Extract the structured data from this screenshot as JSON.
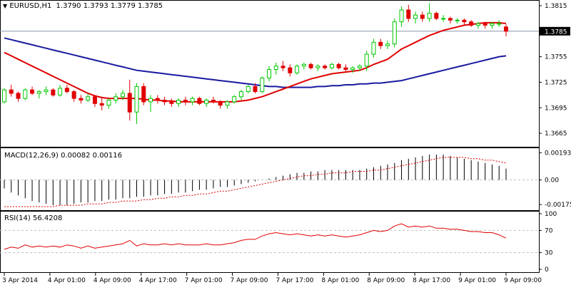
{
  "header": {
    "symbol_tf": "EURUSD,H1",
    "ohlc": "1.3790 1.3793 1.3779 1.3785"
  },
  "price_tag": "1.3785",
  "macd_header": "MACD(12,26,9) 0.00082 0.00116",
  "rsi_header": "RSI(14) 56.4208",
  "colors": {
    "bull": "#00c800",
    "bear": "#e00000",
    "ma_fast": "#e00000",
    "ma_slow": "#1a1aa0",
    "macd_signal": "#e00000",
    "rsi": "#e00000",
    "grid": "#c0c0c0",
    "current_price_line": "#8c96aa",
    "icon_color": "#000000"
  },
  "icons": {
    "menu": "triangle-down-icon"
  },
  "chart_data": [
    {
      "type": "candlestick",
      "name": "EURUSD,H1",
      "ylim": [
        1.365,
        1.382
      ],
      "yticks": [
        "1.3815",
        "1.3785",
        "1.3755",
        "1.3725",
        "1.3695",
        "1.3665"
      ],
      "xticks": [
        "3 Apr 2014",
        "4 Apr 01:00",
        "4 Apr 09:00",
        "4 Apr 17:00",
        "7 Apr 01:00",
        "7 Apr 09:00",
        "7 Apr 17:00",
        "8 Apr 01:00",
        "8 Apr 09:00",
        "8 Apr 17:00",
        "9 Apr 01:00",
        "9 Apr 09:00"
      ],
      "candles": [
        [
          1.3702,
          1.3718,
          1.37,
          1.3716
        ],
        [
          1.3716,
          1.3722,
          1.3708,
          1.3712
        ],
        [
          1.3712,
          1.3714,
          1.3702,
          1.3706
        ],
        [
          1.3706,
          1.3718,
          1.3704,
          1.3716
        ],
        [
          1.3716,
          1.372,
          1.371,
          1.3712
        ],
        [
          1.3712,
          1.3716,
          1.3706,
          1.3714
        ],
        [
          1.3714,
          1.372,
          1.371,
          1.3716
        ],
        [
          1.3716,
          1.3718,
          1.3708,
          1.371
        ],
        [
          1.371,
          1.3722,
          1.3708,
          1.3718
        ],
        [
          1.3718,
          1.3722,
          1.3712,
          1.3714
        ],
        [
          1.3714,
          1.3716,
          1.3702,
          1.3706
        ],
        [
          1.3706,
          1.371,
          1.37,
          1.3704
        ],
        [
          1.3704,
          1.3712,
          1.3702,
          1.3708
        ],
        [
          1.3708,
          1.371,
          1.3696,
          1.37
        ],
        [
          1.37,
          1.3708,
          1.3692,
          1.3698
        ],
        [
          1.3698,
          1.3706,
          1.3694,
          1.3704
        ],
        [
          1.3704,
          1.3712,
          1.37,
          1.3708
        ],
        [
          1.3708,
          1.3716,
          1.3704,
          1.3712
        ],
        [
          1.3712,
          1.3728,
          1.368,
          1.369
        ],
        [
          1.369,
          1.3724,
          1.3676,
          1.372
        ],
        [
          1.372,
          1.3724,
          1.3698,
          1.3702
        ],
        [
          1.3702,
          1.371,
          1.369,
          1.3706
        ],
        [
          1.3706,
          1.371,
          1.37,
          1.3704
        ],
        [
          1.3704,
          1.3708,
          1.3698,
          1.3702
        ],
        [
          1.3702,
          1.3706,
          1.3696,
          1.37
        ],
        [
          1.37,
          1.3706,
          1.3696,
          1.3704
        ],
        [
          1.3704,
          1.3708,
          1.3698,
          1.3702
        ],
        [
          1.3702,
          1.3708,
          1.3698,
          1.3706
        ],
        [
          1.3706,
          1.3708,
          1.3698,
          1.37
        ],
        [
          1.37,
          1.3706,
          1.3696,
          1.3704
        ],
        [
          1.3704,
          1.3708,
          1.37,
          1.3702
        ],
        [
          1.3702,
          1.3704,
          1.3694,
          1.3698
        ],
        [
          1.3698,
          1.3704,
          1.3694,
          1.3702
        ],
        [
          1.3702,
          1.371,
          1.37,
          1.3708
        ],
        [
          1.3708,
          1.3716,
          1.3704,
          1.3714
        ],
        [
          1.3714,
          1.3722,
          1.3712,
          1.372
        ],
        [
          1.372,
          1.3724,
          1.3712,
          1.3714
        ],
        [
          1.3714,
          1.3732,
          1.3712,
          1.373
        ],
        [
          1.373,
          1.3744,
          1.3726,
          1.374
        ],
        [
          1.374,
          1.3748,
          1.3734,
          1.3744
        ],
        [
          1.3744,
          1.375,
          1.3738,
          1.3742
        ],
        [
          1.3742,
          1.3746,
          1.3732,
          1.3736
        ],
        [
          1.3736,
          1.3746,
          1.3734,
          1.3744
        ],
        [
          1.3744,
          1.3748,
          1.374,
          1.3746
        ],
        [
          1.3746,
          1.3748,
          1.374,
          1.3742
        ],
        [
          1.3742,
          1.3746,
          1.3738,
          1.3744
        ],
        [
          1.3744,
          1.3746,
          1.374,
          1.3742
        ],
        [
          1.3742,
          1.3748,
          1.374,
          1.3746
        ],
        [
          1.3746,
          1.3748,
          1.374,
          1.3742
        ],
        [
          1.3742,
          1.3746,
          1.3738,
          1.374
        ],
        [
          1.374,
          1.3744,
          1.3736,
          1.3742
        ],
        [
          1.3742,
          1.3746,
          1.3738,
          1.3744
        ],
        [
          1.3744,
          1.3762,
          1.3738,
          1.3758
        ],
        [
          1.3758,
          1.3776,
          1.3754,
          1.3772
        ],
        [
          1.3772,
          1.3776,
          1.3764,
          1.3768
        ],
        [
          1.3768,
          1.3774,
          1.3764,
          1.377
        ],
        [
          1.377,
          1.38,
          1.3766,
          1.3796
        ],
        [
          1.3796,
          1.3814,
          1.379,
          1.381
        ],
        [
          1.381,
          1.3816,
          1.3796,
          1.38
        ],
        [
          1.38,
          1.3808,
          1.3794,
          1.3804
        ],
        [
          1.3804,
          1.3808,
          1.3796,
          1.38
        ],
        [
          1.38,
          1.3818,
          1.3796,
          1.3806
        ],
        [
          1.3806,
          1.3808,
          1.3798,
          1.38
        ],
        [
          1.38,
          1.3804,
          1.3796,
          1.38
        ],
        [
          1.38,
          1.3802,
          1.3794,
          1.3798
        ],
        [
          1.3798,
          1.38,
          1.3794,
          1.3798
        ],
        [
          1.3798,
          1.38,
          1.3792,
          1.3796
        ],
        [
          1.3796,
          1.3798,
          1.379,
          1.3792
        ],
        [
          1.3792,
          1.3796,
          1.3788,
          1.3794
        ],
        [
          1.3794,
          1.3796,
          1.3788,
          1.3792
        ],
        [
          1.3792,
          1.3796,
          1.3788,
          1.3794
        ],
        [
          1.3794,
          1.3798,
          1.379,
          1.3794
        ],
        [
          1.379,
          1.3793,
          1.3779,
          1.3785
        ]
      ],
      "ma_fast": [
        1.376,
        1.3756,
        1.3752,
        1.3748,
        1.3744,
        1.374,
        1.3736,
        1.3732,
        1.3728,
        1.3724,
        1.372,
        1.3716,
        1.3712,
        1.3709,
        1.3707,
        1.3706,
        1.3706,
        1.3706,
        1.3706,
        1.3706,
        1.3705,
        1.3704,
        1.3704,
        1.3703,
        1.3703,
        1.3702,
        1.3702,
        1.3702,
        1.3702,
        1.3702,
        1.3702,
        1.3702,
        1.3702,
        1.3702,
        1.3703,
        1.3704,
        1.3706,
        1.3708,
        1.3711,
        1.3714,
        1.3717,
        1.372,
        1.3723,
        1.3726,
        1.3729,
        1.3731,
        1.3733,
        1.3735,
        1.3736,
        1.3737,
        1.3738,
        1.3739,
        1.3742,
        1.3746,
        1.3749,
        1.3752,
        1.3758,
        1.3764,
        1.3768,
        1.3772,
        1.3776,
        1.378,
        1.3783,
        1.3786,
        1.3788,
        1.379,
        1.3792,
        1.3793,
        1.3794,
        1.3795,
        1.3795,
        1.3795,
        1.3794
      ],
      "ma_slow": [
        1.3777,
        1.3775,
        1.3773,
        1.3771,
        1.3769,
        1.3767,
        1.3765,
        1.3763,
        1.3761,
        1.3759,
        1.3757,
        1.3755,
        1.3753,
        1.3751,
        1.3749,
        1.3747,
        1.3745,
        1.3743,
        1.3741,
        1.3739,
        1.3738,
        1.3737,
        1.3736,
        1.3735,
        1.3734,
        1.3733,
        1.3732,
        1.3731,
        1.373,
        1.3729,
        1.3728,
        1.3727,
        1.3726,
        1.3725,
        1.3724,
        1.3723,
        1.3722,
        1.3721,
        1.372,
        1.372,
        1.3719,
        1.3719,
        1.3719,
        1.3719,
        1.3719,
        1.372,
        1.372,
        1.3721,
        1.3721,
        1.3722,
        1.3722,
        1.3723,
        1.3723,
        1.3724,
        1.3724,
        1.3725,
        1.3726,
        1.3727,
        1.3729,
        1.3731,
        1.3733,
        1.3735,
        1.3737,
        1.3739,
        1.3741,
        1.3743,
        1.3745,
        1.3747,
        1.3749,
        1.3751,
        1.3753,
        1.3755,
        1.3756
      ]
    },
    {
      "type": "bar",
      "name": "MACD(12,26,9)",
      "ylim": [
        -0.0021,
        0.0022
      ],
      "yticks": [
        "0.00193",
        "0.00",
        "-0.00175"
      ],
      "histogram": [
        -0.0006,
        -0.0009,
        -0.0011,
        -0.0013,
        -0.0015,
        -0.0016,
        -0.0017,
        -0.0018,
        -0.0018,
        -0.0018,
        -0.0017,
        -0.0016,
        -0.0016,
        -0.0015,
        -0.0015,
        -0.0014,
        -0.0014,
        -0.0013,
        -0.0013,
        -0.0012,
        -0.0012,
        -0.0011,
        -0.0011,
        -0.001,
        -0.001,
        -0.0009,
        -0.0009,
        -0.0008,
        -0.0007,
        -0.0007,
        -0.0006,
        -0.0005,
        -0.0005,
        -0.0004,
        -0.0003,
        -0.0002,
        -0.0001,
        0.0,
        0.0001,
        0.0002,
        0.0003,
        0.0004,
        0.0005,
        0.0005,
        0.0006,
        0.0006,
        0.0007,
        0.0007,
        0.0007,
        0.0007,
        0.0007,
        0.0007,
        0.0008,
        0.0009,
        0.001,
        0.0011,
        0.0012,
        0.0014,
        0.0015,
        0.0016,
        0.0017,
        0.0018,
        0.0018,
        0.0018,
        0.0017,
        0.0016,
        0.0015,
        0.0014,
        0.0013,
        0.0012,
        0.0011,
        0.001,
        0.0008
      ],
      "signal": [
        -0.0019,
        -0.0019,
        -0.0019,
        -0.0019,
        -0.0019,
        -0.0019,
        -0.0019,
        -0.0019,
        -0.0018,
        -0.0018,
        -0.0018,
        -0.0018,
        -0.0017,
        -0.0017,
        -0.0017,
        -0.0016,
        -0.0016,
        -0.0015,
        -0.0015,
        -0.0015,
        -0.0014,
        -0.0014,
        -0.0013,
        -0.0013,
        -0.0012,
        -0.0012,
        -0.0011,
        -0.0011,
        -0.001,
        -0.001,
        -0.0009,
        -0.0008,
        -0.0008,
        -0.0007,
        -0.0006,
        -0.0005,
        -0.0004,
        -0.0003,
        -0.0002,
        -0.0001,
        0.0,
        0.0001,
        0.0002,
        0.0003,
        0.0003,
        0.0004,
        0.0004,
        0.0005,
        0.0005,
        0.0005,
        0.0006,
        0.0006,
        0.0006,
        0.0007,
        0.0007,
        0.0008,
        0.0009,
        0.001,
        0.0011,
        0.0012,
        0.0013,
        0.0014,
        0.0015,
        0.0016,
        0.0016,
        0.0016,
        0.0016,
        0.0015,
        0.0015,
        0.0014,
        0.0014,
        0.0013,
        0.0012
      ]
    },
    {
      "type": "line",
      "name": "RSI(14)",
      "ylim": [
        0,
        100
      ],
      "yticks": [
        "100",
        "70",
        "30",
        "0"
      ],
      "levels": [
        70,
        30
      ],
      "values": [
        36,
        40,
        38,
        44,
        40,
        42,
        40,
        42,
        40,
        44,
        42,
        38,
        42,
        38,
        40,
        42,
        44,
        46,
        52,
        42,
        46,
        44,
        44,
        46,
        44,
        46,
        44,
        44,
        44,
        46,
        44,
        44,
        46,
        48,
        52,
        54,
        54,
        60,
        64,
        66,
        64,
        62,
        64,
        62,
        60,
        62,
        60,
        62,
        60,
        58,
        60,
        62,
        66,
        70,
        68,
        70,
        78,
        82,
        76,
        78,
        76,
        78,
        74,
        74,
        72,
        72,
        70,
        68,
        68,
        66,
        66,
        62,
        56
      ]
    }
  ]
}
